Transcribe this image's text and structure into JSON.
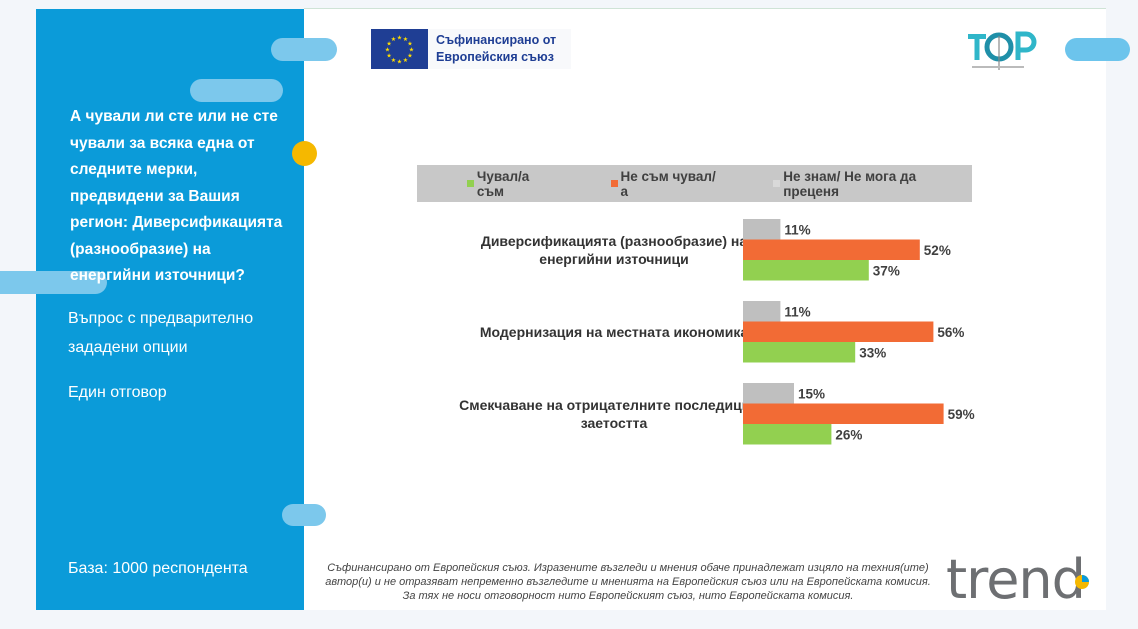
{
  "sidebar": {
    "question": "А чували ли сте или не сте чували за всяка една от следните мерки, предвидени за Вашия регион: Диверсификацията (разнообразие) на енергийни източници?",
    "note1": "Въпрос с предварително",
    "note2": "зададени опции",
    "note3": "Един отговор",
    "base": "База: 1000 респондента"
  },
  "header": {
    "eu_line1": "Съфинансирано от",
    "eu_line2": "Европейския съюз"
  },
  "footer": {
    "disclaimer": "Съфинансирано от Европейския съюз. Изразените възгледи и мнения обаче принадлежат изцяло на техния(ите) автор(и) и не отразяват непременно възгледите и мненията на Европейския съюз или на Европейската комисия. За тях не носи отговорност нито Европейският съюз, нито Европейската комисия.",
    "logo_text": "trend"
  },
  "chart_data": {
    "type": "bar",
    "orientation": "horizontal",
    "categories": [
      [
        "Диверсификацията (разнообразие) на",
        "енергийни източници"
      ],
      [
        "Модернизация на местната икономика"
      ],
      [
        "Смекчаване на отрицателните последици за",
        "заетостта"
      ]
    ],
    "series": [
      {
        "name": "Не знам/ Не мога да преценя",
        "color": "#bfbfbf",
        "values": [
          11,
          11,
          15
        ]
      },
      {
        "name": "Не съм чувал/а",
        "color": "#f26b35",
        "values": [
          52,
          56,
          59
        ]
      },
      {
        "name": "Чувал/а съм",
        "color": "#92d050",
        "values": [
          37,
          33,
          26
        ]
      }
    ],
    "legend_order": [
      "Чувал/а съм",
      "Не съм чувал/а",
      "Не знам/ Не мога да преценя"
    ],
    "value_suffix": "%",
    "xlim": [
      0,
      100
    ],
    "legend_position": "top",
    "grid": false
  },
  "colors": {
    "sidebar": "#0b9bd9",
    "accent_dot": "#f5b800",
    "eu_blue": "#1f3e94"
  }
}
